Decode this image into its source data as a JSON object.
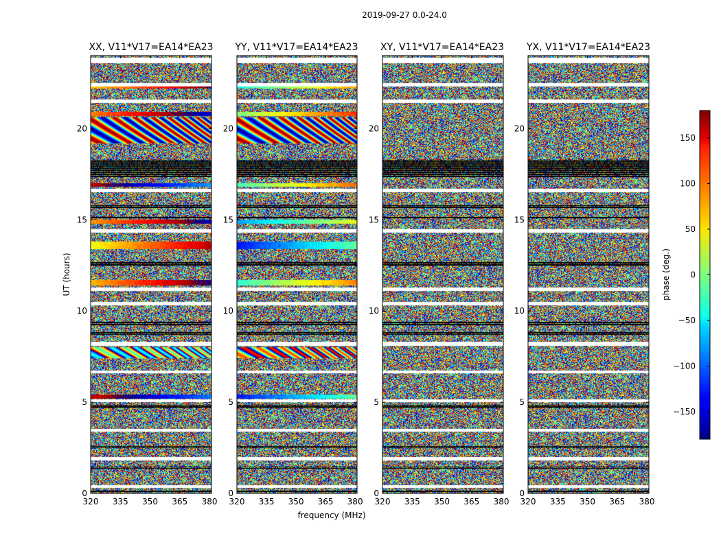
{
  "chart_data": {
    "type": "heatmap",
    "suptitle": "2019-09-27 0.0-24.0",
    "xlabel": "frequency (MHz)",
    "ylabel": "UT (hours)",
    "xlim": [
      320,
      381
    ],
    "ylim": [
      0,
      24
    ],
    "xticks": [
      "320",
      "335",
      "350",
      "365",
      "380"
    ],
    "yticks": [
      "0",
      "5",
      "10",
      "15",
      "20"
    ],
    "xtick_values": [
      320,
      335,
      350,
      365,
      380
    ],
    "ytick_values": [
      0,
      5,
      10,
      15,
      20
    ],
    "colorbar": {
      "label": "phase (deg.)",
      "range": [
        -180,
        180
      ],
      "ticks": [
        "−150",
        "−100",
        "−50",
        "0",
        "50",
        "100",
        "150"
      ],
      "tick_values": [
        -150,
        -100,
        -50,
        0,
        50,
        100,
        150
      ],
      "colormap": "jet"
    },
    "panels": [
      {
        "title": "XX, V11*V17=EA14*EA23",
        "pol": "XX",
        "coherent": true
      },
      {
        "title": "YY, V11*V17=EA14*EA23",
        "pol": "YY",
        "coherent": true
      },
      {
        "title": "XY, V11*V17=EA14*EA23",
        "pol": "XY",
        "coherent": false
      },
      {
        "title": "YX, V11*V17=EA14*EA23",
        "pol": "YX",
        "coherent": false
      }
    ],
    "flagged_white_hours": [
      [
        23.6,
        23.9
      ],
      [
        22.3,
        22.5
      ],
      [
        21.4,
        21.6
      ],
      [
        16.5,
        16.7
      ],
      [
        14.3,
        14.5
      ],
      [
        11.1,
        11.3
      ],
      [
        10.3,
        10.5
      ],
      [
        8.1,
        8.3
      ],
      [
        6.6,
        6.75
      ],
      [
        5.0,
        5.15
      ],
      [
        3.4,
        3.55
      ],
      [
        1.8,
        2.0
      ],
      [
        0.3,
        0.45
      ]
    ],
    "flagged_black_hours": [
      [
        17.35,
        18.3
      ],
      [
        15.6,
        15.8
      ],
      [
        15.05,
        15.2
      ],
      [
        12.5,
        12.7
      ],
      [
        9.2,
        9.45
      ],
      [
        8.7,
        8.85
      ],
      [
        4.7,
        4.85
      ],
      [
        2.5,
        2.6
      ],
      [
        1.35,
        1.45
      ],
      [
        0.05,
        0.15
      ]
    ],
    "coherent_bands": [
      {
        "hours": [
          22.2,
          22.4
        ],
        "xx_deg": 120,
        "yy_deg": 20
      },
      {
        "hours": [
          20.7,
          20.9
        ],
        "xx_deg": 150,
        "yy_deg": 60
      },
      {
        "hours": [
          19.2,
          20.6
        ],
        "xx_deg": 0,
        "yy_deg": 0,
        "fringe": true
      },
      {
        "hours": [
          16.8,
          17.0
        ],
        "xx_deg": -140,
        "yy_deg": 40
      },
      {
        "hours": [
          14.8,
          15.0
        ],
        "xx_deg": 140,
        "yy_deg": -20
      },
      {
        "hours": [
          13.4,
          13.8
        ],
        "xx_deg": 100,
        "yy_deg": -70
      },
      {
        "hours": [
          11.4,
          11.7
        ],
        "xx_deg": 130,
        "yy_deg": 30
      },
      {
        "hours": [
          7.4,
          8.0
        ],
        "xx_deg": 150,
        "yy_deg": -60,
        "fringe": true
      },
      {
        "hours": [
          5.2,
          5.4
        ],
        "xx_deg": -150,
        "yy_deg": -70
      }
    ]
  }
}
